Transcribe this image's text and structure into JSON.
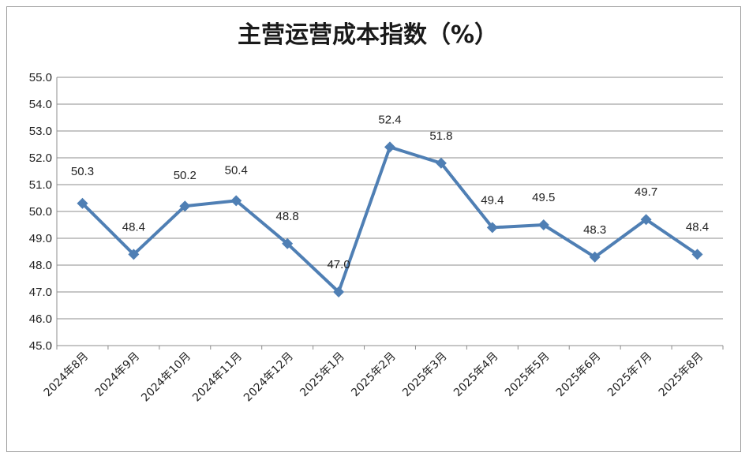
{
  "chart_data": {
    "type": "line",
    "title": "主营运营成本指数（%）",
    "categories": [
      "2024年8月",
      "2024年9月",
      "2024年10月",
      "2024年11月",
      "2024年12月",
      "2025年1月",
      "2025年2月",
      "2025年3月",
      "2025年4月",
      "2025年5月",
      "2025年6月",
      "2025年7月",
      "2025年8月"
    ],
    "series": [
      {
        "values": [
          50.3,
          48.4,
          50.2,
          50.4,
          48.8,
          47.0,
          52.4,
          51.8,
          49.4,
          49.5,
          48.3,
          49.7,
          48.4
        ],
        "labels": [
          "50.3",
          "48.4",
          "50.2",
          "50.4",
          "48.8",
          "47.0",
          "52.4",
          "51.8",
          "49.4",
          "49.5",
          "48.3",
          "49.7",
          "48.4"
        ]
      }
    ],
    "ylim": [
      45.0,
      55.0
    ],
    "yticks": [
      "45.0",
      "46.0",
      "47.0",
      "48.0",
      "49.0",
      "50.0",
      "51.0",
      "52.0",
      "53.0",
      "54.0",
      "55.0"
    ],
    "grid": true,
    "legend": "none",
    "line_color": "#4f7fb4",
    "grid_color": "#8c8c8c"
  }
}
